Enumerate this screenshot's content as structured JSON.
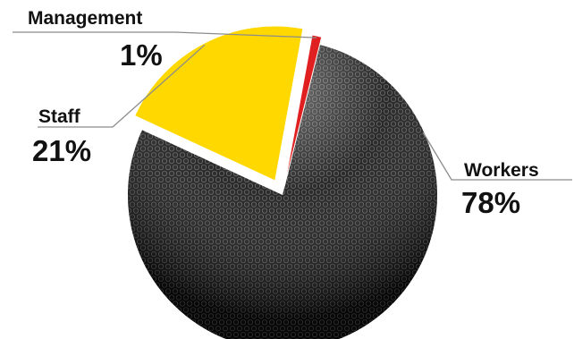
{
  "chart_data": {
    "type": "pie",
    "title": "",
    "categories": [
      "Workers",
      "Staff",
      "Management"
    ],
    "values": [
      78,
      21,
      1
    ],
    "labels": [
      "78%",
      "21%",
      "1%"
    ],
    "exploded": [
      "Staff",
      "Management"
    ],
    "colors": {
      "Workers": "#1e1e1e",
      "Staff": "#ffd800",
      "Management": "#e02020"
    },
    "workers_texture": "hexagonal-metal-mesh",
    "legend": "none",
    "label_placement": "outside-with-leader-lines"
  }
}
